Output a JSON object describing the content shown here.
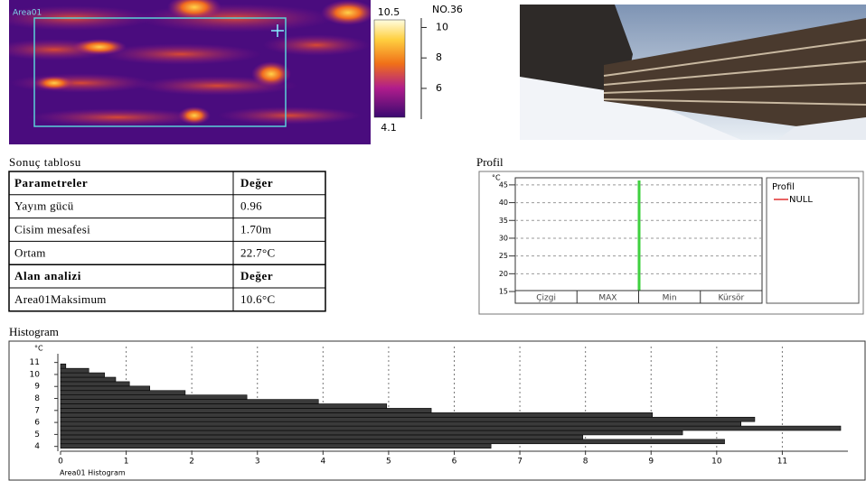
{
  "thermal": {
    "area_label": "Area01",
    "image_no": "NO.36",
    "scale_max": 10.5,
    "scale_min": 4.1,
    "scale_ticks": [
      10,
      8,
      6
    ]
  },
  "results": {
    "title": "Sonuç tablosu",
    "rows": [
      [
        "Parametreler",
        "Değer"
      ],
      [
        "Yayım gücü",
        "0.96"
      ],
      [
        "Cisim mesafesi",
        "1.70m"
      ],
      [
        "Ortam",
        "22.7°C"
      ],
      [
        "Alan analizi",
        "Değer"
      ],
      [
        "Area01Maksimum",
        "10.6°C"
      ]
    ]
  },
  "profile": {
    "title": "Profil",
    "y_unit": "°C",
    "ylim": [
      14.5,
      47
    ],
    "yticks": [
      15,
      20,
      25,
      30,
      35,
      40,
      45
    ],
    "grid": true,
    "columns": [
      "Çizgi",
      "MAX",
      "Min",
      "Kürsör"
    ],
    "legend": {
      "title": "Profil",
      "entries": [
        {
          "name": "NULL",
          "color": "#e03030"
        }
      ]
    }
  },
  "histogram": {
    "title": "Histogram",
    "chart_data": {
      "type": "histogram",
      "orientation": "horizontal",
      "y_unit": "°C",
      "footer": "Area01  Histogram",
      "bins": [
        3.85,
        4.22,
        4.59,
        4.96,
        5.33,
        5.7,
        6.07,
        6.44,
        6.81,
        7.18,
        7.55,
        7.92,
        8.29,
        8.66,
        9.03,
        9.4,
        9.77,
        10.14,
        10.51,
        10.88
      ],
      "values": [
        6.56,
        10.12,
        7.96,
        9.48,
        11.89,
        10.37,
        10.58,
        9.02,
        5.65,
        4.97,
        3.93,
        2.84,
        1.9,
        1.36,
        1.05,
        0.84,
        0.67,
        0.43,
        0.08
      ],
      "color": "#3a3a3a",
      "xlim": [
        0,
        12
      ],
      "xticks": [
        0,
        1,
        2,
        3,
        4,
        5,
        6,
        7,
        8,
        9,
        10,
        11
      ],
      "ylim": [
        3.6,
        11.5
      ],
      "yticks": [
        4,
        5,
        6,
        7,
        8,
        9,
        10,
        11
      ],
      "grid": true
    }
  }
}
